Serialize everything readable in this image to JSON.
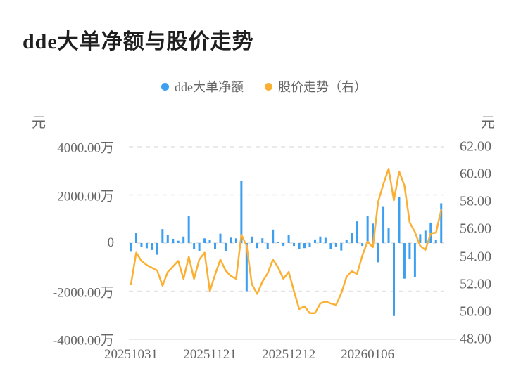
{
  "title": "dde大单净额与股价走势",
  "legend": {
    "items": [
      {
        "label": "dde大单净额",
        "color": "#3d9ff0"
      },
      {
        "label": "股价走势（右）",
        "color": "#fbb034"
      }
    ]
  },
  "axes": {
    "left": {
      "unit": "元",
      "ticks": [
        "4000.00万",
        "2000.00万",
        "0",
        "-2000.00万",
        "-4000.00万"
      ]
    },
    "right": {
      "unit": "元",
      "ticks": [
        "62.00",
        "60.00",
        "58.00",
        "56.00",
        "54.00",
        "52.00",
        "50.00",
        "48.00"
      ]
    },
    "x": {
      "ticks": [
        "20251031",
        "20251121",
        "20251212",
        "20260106"
      ]
    }
  },
  "chart_data": {
    "type": "bar",
    "subtype": "bar-and-line-combo",
    "title": "dde大单净额与股价走势",
    "x_tick_labels": [
      "20251031",
      "20251121",
      "20251212",
      "20260106"
    ],
    "x_tick_indices": [
      0,
      15,
      30,
      45
    ],
    "left_axis": {
      "label": "元",
      "unit_of_values": "万",
      "min": -4000,
      "max": 4000,
      "grid": true
    },
    "right_axis": {
      "label": "元",
      "min": 48,
      "max": 62,
      "grid": false
    },
    "series": [
      {
        "name": "dde大单净额",
        "type": "bar",
        "axis": "left",
        "color": "#3d9ff0",
        "values_wan": [
          -360,
          420,
          -170,
          -215,
          -290,
          -485,
          580,
          350,
          175,
          95,
          270,
          1120,
          -260,
          -330,
          195,
          125,
          -260,
          390,
          -330,
          225,
          195,
          2600,
          -2000,
          270,
          -210,
          200,
          -260,
          560,
          50,
          -120,
          320,
          -120,
          -260,
          -210,
          -150,
          150,
          270,
          220,
          -240,
          -170,
          -310,
          130,
          420,
          900,
          -120,
          1120,
          810,
          -800,
          1530,
          610,
          -3030,
          1920,
          -1480,
          -650,
          -1400,
          370,
          515,
          850,
          130,
          1650
        ]
      },
      {
        "name": "股价走势（右）",
        "type": "line",
        "axis": "right",
        "color": "#fbb034",
        "values": [
          52.0,
          54.3,
          53.7,
          53.4,
          53.2,
          53.0,
          51.9,
          52.9,
          53.3,
          53.7,
          52.4,
          54.0,
          52.4,
          53.8,
          54.3,
          51.5,
          52.7,
          53.8,
          53.0,
          52.6,
          52.4,
          55.6,
          54.8,
          52.0,
          51.3,
          52.2,
          52.8,
          53.8,
          53.2,
          52.4,
          52.9,
          51.5,
          50.2,
          50.4,
          49.9,
          49.9,
          50.6,
          50.75,
          50.6,
          50.5,
          51.35,
          52.55,
          52.95,
          52.75,
          54.1,
          55.1,
          54.7,
          58.0,
          59.3,
          60.4,
          58.1,
          60.2,
          59.2,
          56.5,
          55.8,
          54.8,
          54.5,
          55.7,
          55.75,
          57.4
        ]
      }
    ],
    "legend_position": "top-center",
    "colors": {
      "grid": "#e4e4e4",
      "axis_text": "#666666",
      "title_text": "#1f1f1f"
    }
  }
}
